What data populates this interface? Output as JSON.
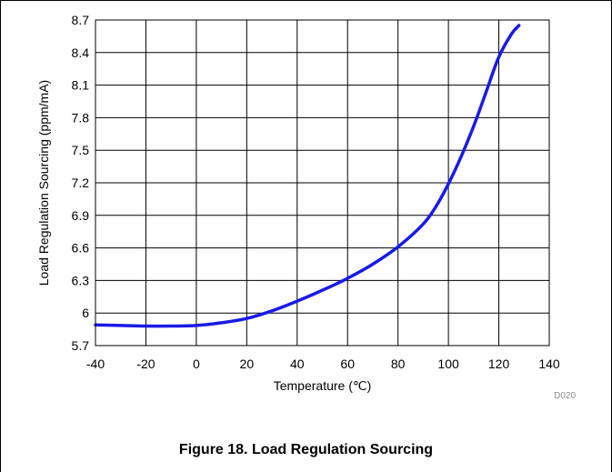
{
  "chart_data": {
    "type": "line",
    "xlabel": "Temperature (℃)",
    "ylabel": "Load Regulation Sourcing (ppm/mA)",
    "xlim": [
      -40,
      140
    ],
    "ylim": [
      5.7,
      8.7
    ],
    "x_ticks": [
      "-40",
      "-20",
      "0",
      "20",
      "40",
      "60",
      "80",
      "100",
      "120",
      "140"
    ],
    "y_ticks": [
      "8.7",
      "8.4",
      "8.1",
      "7.8",
      "7.5",
      "7.2",
      "6.9",
      "6.6",
      "6.3",
      "6",
      "5.7"
    ],
    "grid": true,
    "legend": "none",
    "series": [
      {
        "color": "#1a1ae6",
        "x": [
          -40,
          -30,
          -20,
          -10,
          0,
          10,
          20,
          30,
          40,
          50,
          60,
          70,
          80,
          90,
          95,
          100,
          105,
          110,
          115,
          120,
          125,
          128
        ],
        "y": [
          5.89,
          5.885,
          5.88,
          5.88,
          5.885,
          5.91,
          5.95,
          6.02,
          6.11,
          6.21,
          6.32,
          6.45,
          6.61,
          6.82,
          6.98,
          7.19,
          7.44,
          7.72,
          8.04,
          8.36,
          8.57,
          8.65
        ]
      }
    ],
    "code_label": "D020"
  },
  "caption": "Figure 18. Load Regulation Sourcing"
}
